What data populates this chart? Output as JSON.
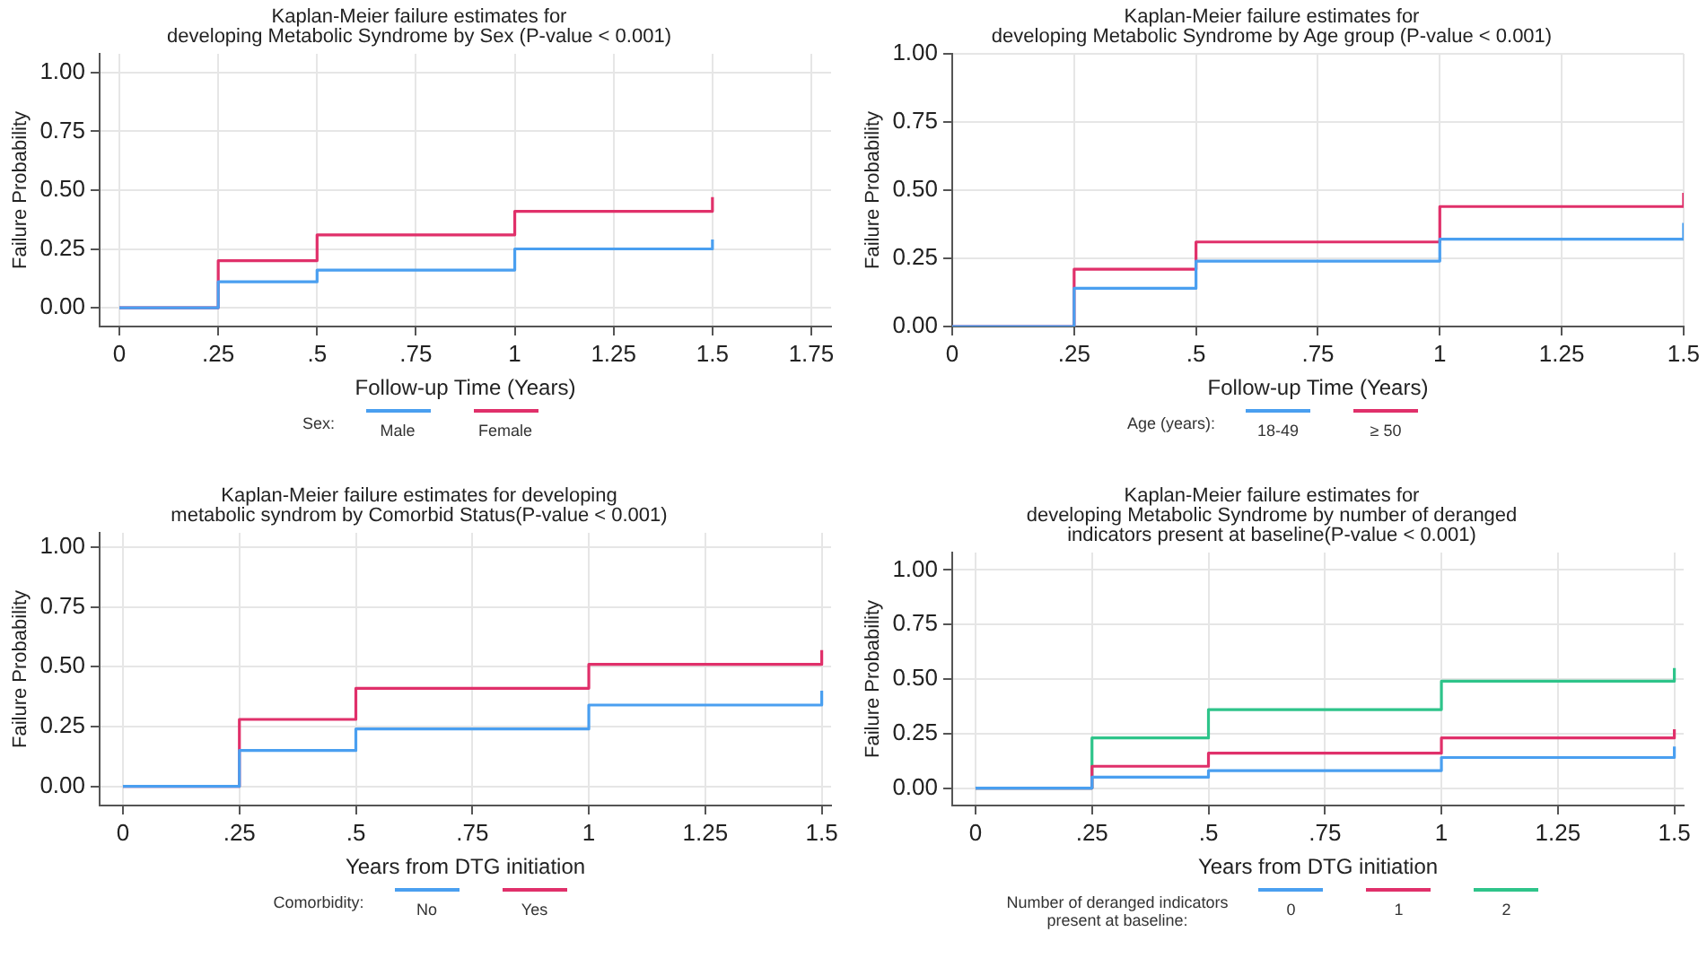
{
  "chart_data": [
    {
      "type": "step",
      "title": "Kaplan-Meier failure estimates for\ndeveloping Metabolic Syndrome by Sex (P-value < 0.001)",
      "xlabel": "Follow-up Time (Years)",
      "ylabel": "Failure Probability",
      "legend_title": "Sex:",
      "x": [
        0,
        0.25,
        0.5,
        1,
        1.5
      ],
      "series": [
        {
          "name": "Male",
          "color": "#4a9ff0",
          "values": [
            0,
            0.11,
            0.16,
            0.25,
            0.29
          ]
        },
        {
          "name": "Female",
          "color": "#e0306a",
          "values": [
            0,
            0.2,
            0.31,
            0.41,
            0.47
          ]
        }
      ],
      "xlim": [
        -0.05,
        1.8
      ],
      "xticks": [
        0,
        {
          "value": 0.25,
          "label": ".25"
        },
        {
          "value": 0.5,
          "label": ".5"
        },
        {
          "value": 0.75,
          "label": ".75"
        },
        1,
        1.25,
        1.5,
        1.75
      ],
      "ylim": [
        -0.08,
        1.08
      ],
      "yticks": [
        {
          "value": 0,
          "label": "0.00"
        },
        {
          "value": 0.25,
          "label": "0.25"
        },
        {
          "value": 0.5,
          "label": "0.50"
        },
        {
          "value": 0.75,
          "label": "0.75"
        },
        {
          "value": 1,
          "label": "1.00"
        }
      ],
      "grid": true,
      "legend": "bottom",
      "marker": "none",
      "line_style": "solid"
    },
    {
      "type": "step",
      "title": "Kaplan-Meier failure estimates for\ndeveloping Metabolic Syndrome by Age group (P-value < 0.001)",
      "xlabel": "Follow-up Time (Years)",
      "ylabel": "Failure Probability",
      "legend_title": "Age (years):",
      "x": [
        0,
        0.25,
        0.5,
        1,
        1.5
      ],
      "series": [
        {
          "name": "18-49",
          "color": "#4a9ff0",
          "values": [
            0,
            0.14,
            0.24,
            0.32,
            0.38
          ]
        },
        {
          "name": "≥ 50",
          "color": "#e0306a",
          "values": [
            0,
            0.21,
            0.31,
            0.44,
            0.49
          ]
        }
      ],
      "xlim": [
        0,
        1.5
      ],
      "xticks": [
        0,
        {
          "value": 0.25,
          "label": ".25"
        },
        {
          "value": 0.5,
          "label": ".5"
        },
        {
          "value": 0.75,
          "label": ".75"
        },
        1,
        1.25,
        1.5
      ],
      "ylim": [
        0,
        1
      ],
      "yticks": [
        {
          "value": 0,
          "label": "0.00"
        },
        {
          "value": 0.25,
          "label": "0.25"
        },
        {
          "value": 0.5,
          "label": "0.50"
        },
        {
          "value": 0.75,
          "label": "0.75"
        },
        {
          "value": 1,
          "label": "1.00"
        }
      ],
      "grid": true,
      "legend": "bottom",
      "marker": "none",
      "line_style": "solid"
    },
    {
      "type": "step",
      "title": "Kaplan-Meier failure estimates for developing\nmetabolic syndrom by Comorbid Status(P-value < 0.001)",
      "xlabel": "Years from DTG initiation",
      "ylabel": "Failure Probability",
      "legend_title": "Comorbidity:",
      "x": [
        0,
        0.25,
        0.5,
        1,
        1.5
      ],
      "series": [
        {
          "name": "No",
          "color": "#4a9ff0",
          "values": [
            0,
            0.15,
            0.24,
            0.34,
            0.4
          ]
        },
        {
          "name": "Yes",
          "color": "#e0306a",
          "values": [
            0,
            0.28,
            0.41,
            0.51,
            0.57
          ]
        }
      ],
      "xlim": [
        -0.05,
        1.52
      ],
      "xticks": [
        0,
        {
          "value": 0.25,
          "label": ".25"
        },
        {
          "value": 0.5,
          "label": ".5"
        },
        {
          "value": 0.75,
          "label": ".75"
        },
        1,
        1.25,
        1.5
      ],
      "ylim": [
        -0.08,
        1.06
      ],
      "yticks": [
        {
          "value": 0,
          "label": "0.00"
        },
        {
          "value": 0.25,
          "label": "0.25"
        },
        {
          "value": 0.5,
          "label": "0.50"
        },
        {
          "value": 0.75,
          "label": "0.75"
        },
        {
          "value": 1,
          "label": "1.00"
        }
      ],
      "grid": true,
      "legend": "bottom",
      "marker": "none",
      "line_style": "solid"
    },
    {
      "type": "step",
      "title": "Kaplan-Meier failure estimates for\ndeveloping Metabolic Syndrome by number of deranged\nindicators present at baseline(P-value < 0.001)",
      "xlabel": "Years from DTG initiation",
      "ylabel": "Failure Probability",
      "legend_title": "Number of deranged indicators\npresent at baseline:",
      "x": [
        0,
        0.25,
        0.5,
        1,
        1.5
      ],
      "series": [
        {
          "name": "0",
          "color": "#4a9ff0",
          "values": [
            0,
            0.05,
            0.08,
            0.14,
            0.19
          ]
        },
        {
          "name": "1",
          "color": "#e0306a",
          "values": [
            0,
            0.1,
            0.16,
            0.23,
            0.27
          ]
        },
        {
          "name": "2",
          "color": "#2ec48a",
          "values": [
            0,
            0.23,
            0.36,
            0.49,
            0.55
          ]
        }
      ],
      "xlim": [
        -0.05,
        1.52
      ],
      "xticks": [
        0,
        {
          "value": 0.25,
          "label": ".25"
        },
        {
          "value": 0.5,
          "label": ".5"
        },
        {
          "value": 0.75,
          "label": ".75"
        },
        1,
        1.25,
        1.5
      ],
      "ylim": [
        -0.08,
        1.08
      ],
      "yticks": [
        {
          "value": 0,
          "label": "0.00"
        },
        {
          "value": 0.25,
          "label": "0.25"
        },
        {
          "value": 0.5,
          "label": "0.50"
        },
        {
          "value": 0.75,
          "label": "0.75"
        },
        {
          "value": 1,
          "label": "1.00"
        }
      ],
      "grid": true,
      "legend": "bottom",
      "marker": "none",
      "line_style": "solid"
    }
  ]
}
